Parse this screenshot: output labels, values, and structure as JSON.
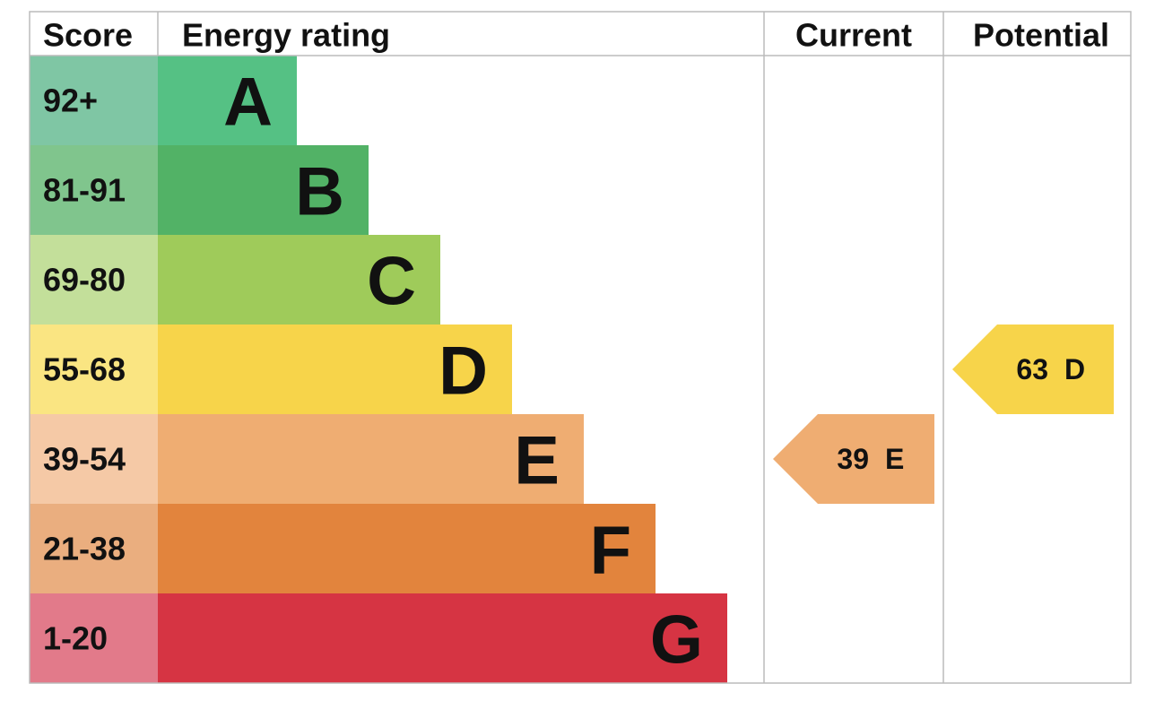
{
  "header": {
    "score": "Score",
    "rating": "Energy rating",
    "current": "Current",
    "potential": "Potential"
  },
  "bands": [
    {
      "score": "92+",
      "letter": "A",
      "color": "#55c184",
      "score_color": "#7fc6a4"
    },
    {
      "score": "81-91",
      "letter": "B",
      "color": "#52b266",
      "score_color": "#80c58d"
    },
    {
      "score": "69-80",
      "letter": "C",
      "color": "#9fcb5a",
      "score_color": "#c3df9a"
    },
    {
      "score": "55-68",
      "letter": "D",
      "color": "#f7d44a",
      "score_color": "#fae582"
    },
    {
      "score": "39-54",
      "letter": "E",
      "color": "#efad72",
      "score_color": "#f5c9a6"
    },
    {
      "score": "21-38",
      "letter": "F",
      "color": "#e2843d",
      "score_color": "#eaae7f"
    },
    {
      "score": "1-20",
      "letter": "G",
      "color": "#d63443",
      "score_color": "#e27a8a"
    }
  ],
  "current": {
    "value": 39,
    "letter": "E"
  },
  "potential": {
    "value": 63,
    "letter": "D"
  }
}
